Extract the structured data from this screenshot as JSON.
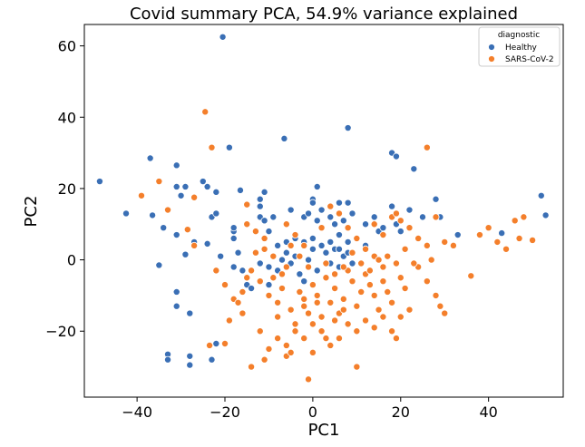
{
  "chart_data": {
    "type": "scatter",
    "title": "Covid summary PCA, 54.9% variance explained",
    "xlabel": "PC1",
    "ylabel": "PC2",
    "xlim": [
      -52,
      57
    ],
    "ylim": [
      -38.5,
      66
    ],
    "xticks": [
      -40,
      -20,
      0,
      20,
      40
    ],
    "yticks": [
      -20,
      0,
      20,
      40,
      60
    ],
    "xtick_labels": [
      "−40",
      "−20",
      "0",
      "20",
      "40"
    ],
    "ytick_labels": [
      "−20",
      "0",
      "20",
      "40",
      "60"
    ],
    "grid": false,
    "legend": {
      "title": "diagnostic",
      "placement": "top-right",
      "entries": [
        "Healthy",
        "SARS-CoV-2"
      ]
    },
    "colors": {
      "Healthy": "#3a6fb5",
      "SARS-CoV-2": "#f47f2b"
    },
    "series": [
      {
        "name": "Healthy",
        "points": [
          [
            -20.5,
            62.5
          ],
          [
            -6.5,
            34
          ],
          [
            8,
            37
          ],
          [
            -37,
            28.5
          ],
          [
            -31,
            26.5
          ],
          [
            18,
            30
          ],
          [
            19,
            29
          ],
          [
            23,
            25.5
          ],
          [
            -48.5,
            22
          ],
          [
            -31,
            20.5
          ],
          [
            -29,
            20.5
          ],
          [
            -30,
            18
          ],
          [
            -25,
            22
          ],
          [
            -24,
            20.5
          ],
          [
            -19,
            31.5
          ],
          [
            -22,
            19
          ],
          [
            -16.5,
            19.5
          ],
          [
            -12,
            17
          ],
          [
            -11,
            19
          ],
          [
            -12,
            15
          ],
          [
            1,
            20.5
          ],
          [
            0,
            17
          ],
          [
            6,
            16
          ],
          [
            8,
            16
          ],
          [
            -42.5,
            13
          ],
          [
            -36.5,
            12.5
          ],
          [
            -34,
            9
          ],
          [
            -31,
            7
          ],
          [
            -23,
            12
          ],
          [
            -22,
            13
          ],
          [
            -18,
            6
          ],
          [
            -18,
            8
          ],
          [
            -18,
            9
          ],
          [
            -17,
            2
          ],
          [
            -12,
            12
          ],
          [
            -11,
            11
          ],
          [
            -10,
            8
          ],
          [
            -9,
            12
          ],
          [
            -5,
            14
          ],
          [
            -2,
            12
          ],
          [
            -1,
            13
          ],
          [
            0,
            16
          ],
          [
            1,
            11
          ],
          [
            2,
            14
          ],
          [
            4,
            12
          ],
          [
            5,
            10
          ],
          [
            6,
            7
          ],
          [
            7,
            11
          ],
          [
            9,
            13
          ],
          [
            12,
            10
          ],
          [
            14,
            12
          ],
          [
            15,
            8
          ],
          [
            16,
            9
          ],
          [
            18,
            15
          ],
          [
            19,
            10
          ],
          [
            20,
            8
          ],
          [
            22,
            14
          ],
          [
            25,
            12
          ],
          [
            28,
            17
          ],
          [
            29,
            12
          ],
          [
            33,
            7
          ],
          [
            43,
            7.5
          ],
          [
            52,
            18
          ],
          [
            53,
            12.5
          ],
          [
            -35,
            -1.5
          ],
          [
            -29,
            1.5
          ],
          [
            -27,
            5
          ],
          [
            -24,
            4.5
          ],
          [
            -21,
            1
          ],
          [
            -18,
            -2
          ],
          [
            -16,
            -3
          ],
          [
            -15,
            -7
          ],
          [
            -12,
            -1
          ],
          [
            -10,
            -2
          ],
          [
            -8,
            -3
          ],
          [
            -7,
            0
          ],
          [
            -6,
            2
          ],
          [
            -5,
            -1
          ],
          [
            -4,
            1
          ],
          [
            -3,
            -4
          ],
          [
            -2,
            -6
          ],
          [
            -1,
            0
          ],
          [
            0,
            3
          ],
          [
            1,
            -3
          ],
          [
            3,
            2
          ],
          [
            4,
            -1
          ],
          [
            5,
            3
          ],
          [
            6,
            -2
          ],
          [
            7,
            1
          ],
          [
            8,
            2
          ],
          [
            9,
            -1
          ],
          [
            -8,
            4
          ],
          [
            -6,
            5
          ],
          [
            -4,
            6
          ],
          [
            -2,
            5
          ],
          [
            0,
            6
          ],
          [
            2,
            4
          ],
          [
            4,
            5
          ],
          [
            6,
            3
          ],
          [
            8,
            5
          ],
          [
            12,
            4
          ],
          [
            -31,
            -9
          ],
          [
            -31,
            -13
          ],
          [
            -28,
            -15
          ],
          [
            -33,
            -26.5
          ],
          [
            -33,
            -28
          ],
          [
            -28,
            -27
          ],
          [
            -28,
            -29.5
          ],
          [
            -23,
            -28
          ],
          [
            -22,
            -23.5
          ],
          [
            -14,
            -8
          ],
          [
            -10,
            -7
          ]
        ]
      },
      {
        "name": "SARS-CoV-2",
        "points": [
          [
            -24.5,
            41.5
          ],
          [
            -23,
            31.5
          ],
          [
            26,
            31.5
          ],
          [
            -39,
            18
          ],
          [
            -35,
            22
          ],
          [
            -33,
            14
          ],
          [
            -27,
            17.5
          ],
          [
            -15,
            15.5
          ],
          [
            -28.5,
            8.5
          ],
          [
            -27,
            4
          ],
          [
            -22,
            -3
          ],
          [
            -20,
            -7
          ],
          [
            -18,
            -11
          ],
          [
            -16,
            -15
          ],
          [
            -15,
            -5
          ],
          [
            -13,
            2
          ],
          [
            -11,
            6
          ],
          [
            -10,
            -10
          ],
          [
            -9,
            -5
          ],
          [
            -8,
            -12
          ],
          [
            -7,
            -8
          ],
          [
            -6,
            -2
          ],
          [
            -5,
            -14
          ],
          [
            -4,
            -18
          ],
          [
            -3,
            -9
          ],
          [
            -2,
            -13
          ],
          [
            -1,
            -15
          ],
          [
            0,
            -7
          ],
          [
            1,
            -10
          ],
          [
            2,
            -16
          ],
          [
            3,
            -5
          ],
          [
            4,
            -12
          ],
          [
            5,
            -8
          ],
          [
            6,
            -15
          ],
          [
            7,
            -11
          ],
          [
            8,
            -3
          ],
          [
            9,
            -6
          ],
          [
            10,
            -13
          ],
          [
            11,
            -9
          ],
          [
            12,
            -4
          ],
          [
            13,
            -7
          ],
          [
            14,
            -10
          ],
          [
            15,
            -14
          ],
          [
            16,
            -6
          ],
          [
            17,
            -9
          ],
          [
            18,
            -12
          ],
          [
            20,
            -5
          ],
          [
            21,
            -8
          ],
          [
            -4,
            -20
          ],
          [
            -2,
            -22
          ],
          [
            0,
            -18
          ],
          [
            2,
            -20
          ],
          [
            4,
            -24
          ],
          [
            6,
            -22
          ],
          [
            8,
            -18
          ],
          [
            10,
            -20
          ],
          [
            12,
            -17
          ],
          [
            14,
            -19
          ],
          [
            16,
            -16
          ],
          [
            18,
            -20
          ],
          [
            19,
            -22
          ],
          [
            -8,
            -22
          ],
          [
            -6,
            -24
          ],
          [
            -12,
            -20
          ],
          [
            -10,
            -25
          ],
          [
            -20,
            -23.5
          ],
          [
            -23.5,
            -24
          ],
          [
            -14,
            -30
          ],
          [
            -11,
            -28
          ],
          [
            -6,
            -27
          ],
          [
            -1,
            -33.5
          ],
          [
            10,
            -30
          ],
          [
            -5,
            -26
          ],
          [
            14,
            10
          ],
          [
            16,
            7
          ],
          [
            18,
            12
          ],
          [
            19,
            13
          ],
          [
            20,
            11
          ],
          [
            22,
            9
          ],
          [
            24,
            6
          ],
          [
            26,
            4
          ],
          [
            27,
            0
          ],
          [
            28,
            12
          ],
          [
            30,
            5
          ],
          [
            32,
            4
          ],
          [
            36,
            -4.5
          ],
          [
            38,
            7
          ],
          [
            40,
            9
          ],
          [
            42,
            5
          ],
          [
            44,
            3
          ],
          [
            46,
            11
          ],
          [
            47,
            6
          ],
          [
            48,
            12
          ],
          [
            50,
            5.5
          ],
          [
            24,
            -2
          ],
          [
            26,
            -6
          ],
          [
            28,
            -10
          ],
          [
            29,
            -13
          ],
          [
            30,
            -15
          ],
          [
            22,
            -14
          ],
          [
            20,
            -16
          ],
          [
            16,
            -2
          ],
          [
            14,
            1
          ],
          [
            12,
            3
          ],
          [
            10,
            6
          ],
          [
            8,
            9
          ],
          [
            6,
            13
          ],
          [
            4,
            15
          ],
          [
            2,
            9
          ],
          [
            -2,
            4
          ],
          [
            -4,
            7
          ],
          [
            -6,
            10
          ],
          [
            -8,
            -16
          ],
          [
            -3,
            1
          ],
          [
            -1,
            -2
          ],
          [
            3,
            -1
          ],
          [
            5,
            -4
          ],
          [
            7,
            -2
          ],
          [
            9,
            2
          ],
          [
            11,
            -1
          ],
          [
            13,
            -3
          ],
          [
            15,
            0
          ],
          [
            17,
            1
          ],
          [
            19,
            -1
          ],
          [
            21,
            3
          ],
          [
            23,
            -1
          ],
          [
            -12,
            -6
          ],
          [
            -14,
            -3
          ],
          [
            -16,
            -9
          ],
          [
            -17,
            -12
          ],
          [
            -19,
            -17
          ],
          [
            -15,
            10
          ],
          [
            -13,
            8
          ],
          [
            -11,
            3
          ],
          [
            -9,
            1
          ],
          [
            -7,
            -4
          ],
          [
            -5,
            4
          ],
          [
            0,
            -26
          ],
          [
            3,
            -22
          ],
          [
            -2,
            -11
          ],
          [
            1,
            -12
          ],
          [
            5,
            -17
          ],
          [
            7,
            -14
          ]
        ]
      }
    ]
  }
}
